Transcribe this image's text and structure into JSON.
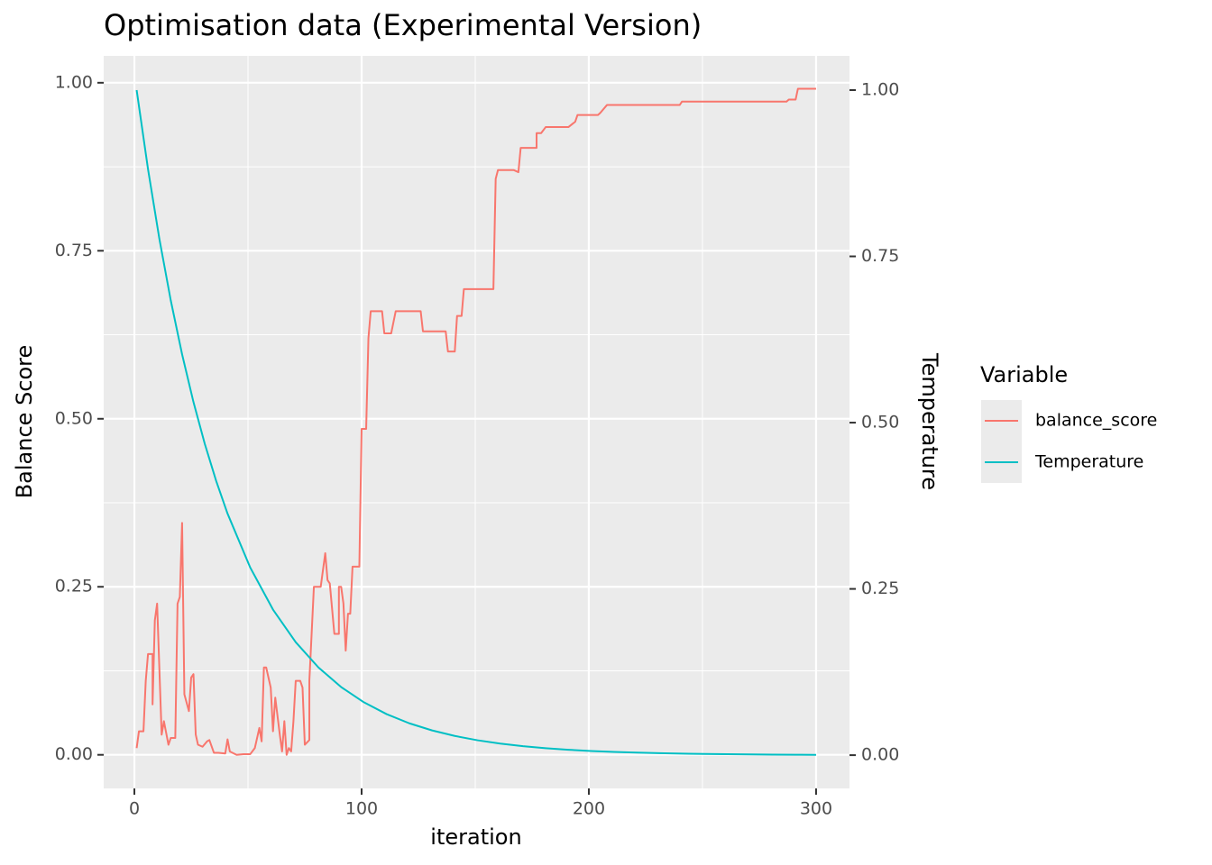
{
  "chart_data": {
    "type": "line",
    "title": "Optimisation data (Experimental Version)",
    "x_label": "iteration",
    "y_label": "Balance Score",
    "y2_label": "Temperature",
    "legend_title": "Variable",
    "legend_position": "right",
    "grid": true,
    "xlim": [
      -13.5,
      314.7
    ],
    "ylim": [
      -0.05,
      1.04
    ],
    "y2lim": [
      -0.05,
      1.0515
    ],
    "xticks": [
      0,
      100,
      200,
      300
    ],
    "yticks": [
      {
        "value": 0,
        "label": "0.00"
      },
      {
        "value": 0.25,
        "label": "0.25"
      },
      {
        "value": 0.5,
        "label": "0.50"
      },
      {
        "value": 0.75,
        "label": "0.75"
      },
      {
        "value": 1,
        "label": "1.00"
      }
    ],
    "y2ticks": [
      {
        "value": 0,
        "label": "0.00"
      },
      {
        "value": 0.25,
        "label": "0.25"
      },
      {
        "value": 0.5,
        "label": "0.50"
      },
      {
        "value": 0.75,
        "label": "0.75"
      },
      {
        "value": 1,
        "label": "1.00"
      }
    ],
    "x_minor_ticks": [
      50,
      150,
      250
    ],
    "y_minor_ticks": [
      0.125,
      0.375,
      0.625,
      0.875
    ],
    "series": [
      {
        "name": "balance_score",
        "color": "#f8766d",
        "axis": "y",
        "x": [
          1,
          2,
          4,
          5,
          6,
          8,
          8,
          9,
          10,
          12,
          13,
          15,
          16,
          18,
          19,
          20,
          21,
          22,
          24,
          25,
          26,
          27,
          28,
          30,
          32,
          33,
          35,
          37,
          40,
          41,
          42,
          45,
          48,
          51,
          53,
          55,
          56,
          57,
          58,
          60,
          61,
          62,
          64,
          65,
          66,
          67,
          68,
          69,
          70,
          71,
          73,
          74,
          75,
          77,
          77,
          79,
          82,
          84,
          85,
          86,
          88,
          90,
          90,
          91,
          92,
          93,
          94,
          95,
          96,
          99,
          100,
          102,
          103,
          104,
          109,
          110,
          113,
          115,
          126,
          127,
          137,
          138,
          141,
          142,
          144,
          145,
          158,
          159,
          160,
          167,
          169,
          170,
          177,
          177,
          179,
          181,
          191,
          194,
          195,
          204,
          205,
          208,
          240,
          241,
          287,
          288,
          291,
          292,
          300
        ],
        "values": [
          0.01,
          0.035,
          0.035,
          0.11,
          0.15,
          0.15,
          0.075,
          0.2,
          0.225,
          0.03,
          0.05,
          0.015,
          0.025,
          0.025,
          0.225,
          0.235,
          0.345,
          0.09,
          0.065,
          0.115,
          0.12,
          0.03,
          0.015,
          0.012,
          0.02,
          0.022,
          0.003,
          0.003,
          0.002,
          0.023,
          0.005,
          0.0,
          0.001,
          0.001,
          0.01,
          0.04,
          0.02,
          0.13,
          0.13,
          0.1,
          0.035,
          0.085,
          0.03,
          0.005,
          0.05,
          0.0,
          0.01,
          0.005,
          0.05,
          0.11,
          0.11,
          0.1,
          0.015,
          0.022,
          0.11,
          0.25,
          0.25,
          0.3,
          0.26,
          0.255,
          0.18,
          0.18,
          0.25,
          0.25,
          0.225,
          0.155,
          0.21,
          0.21,
          0.28,
          0.28,
          0.485,
          0.485,
          0.62,
          0.66,
          0.66,
          0.627,
          0.627,
          0.66,
          0.66,
          0.63,
          0.63,
          0.6,
          0.6,
          0.653,
          0.653,
          0.693,
          0.693,
          0.857,
          0.87,
          0.87,
          0.867,
          0.903,
          0.903,
          0.925,
          0.925,
          0.934,
          0.934,
          0.942,
          0.952,
          0.952,
          0.955,
          0.967,
          0.967,
          0.972,
          0.972,
          0.975,
          0.975,
          0.991,
          0.991
        ]
      },
      {
        "name": "Temperature",
        "color": "#00bfc4",
        "axis": "y2",
        "x": [
          1,
          6,
          11,
          16,
          21,
          26,
          31,
          36,
          41,
          51,
          61,
          71,
          81,
          91,
          101,
          111,
          121,
          131,
          141,
          151,
          161,
          171,
          181,
          191,
          201,
          211,
          221,
          231,
          241,
          251,
          261,
          271,
          281,
          291,
          300
        ],
        "values": [
          1,
          0.8811,
          0.7763,
          0.684,
          0.6027,
          0.531,
          0.4679,
          0.4123,
          0.3632,
          0.282,
          0.2189,
          0.1699,
          0.1319,
          0.1024,
          0.0795,
          0.0617,
          0.0479,
          0.0372,
          0.0289,
          0.0224,
          0.0174,
          0.0135,
          0.0105,
          0.0081,
          0.0063,
          0.0049,
          0.0038,
          0.003,
          0.0023,
          0.0018,
          0.0014,
          0.0011,
          0.0008,
          0.0007,
          0.0005
        ]
      }
    ]
  }
}
